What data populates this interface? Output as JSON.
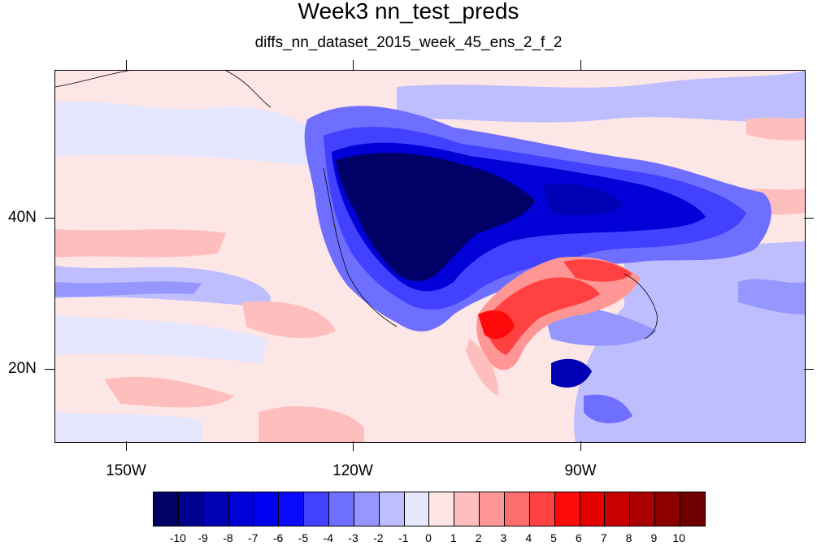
{
  "title": "Week3 nn_test_preds",
  "subtitle": "diffs_nn_dataset_2015_week_45_ens_2_f_2",
  "map": {
    "latitude_labels": [
      "40N",
      "20N"
    ],
    "longitude_labels": [
      "150W",
      "120W",
      "90W"
    ]
  },
  "colorbar": {
    "colors": [
      "#000066",
      "#00008e",
      "#0000b4",
      "#0000d7",
      "#0000f0",
      "#0a0aff",
      "#4141ff",
      "#6e6eff",
      "#9696ff",
      "#bebeff",
      "#e6e6ff",
      "#ffe6e6",
      "#ffbebe",
      "#ff9696",
      "#ff6e6e",
      "#ff4141",
      "#ff0a0a",
      "#e60000",
      "#c80000",
      "#aa0000",
      "#8c0000",
      "#700000"
    ],
    "labels": [
      "-10",
      "-9",
      "-8",
      "-7",
      "-6",
      "-5",
      "-4",
      "-3",
      "-2",
      "-1",
      "0",
      "1",
      "2",
      "3",
      "4",
      "5",
      "6",
      "7",
      "8",
      "9",
      "10"
    ]
  }
}
